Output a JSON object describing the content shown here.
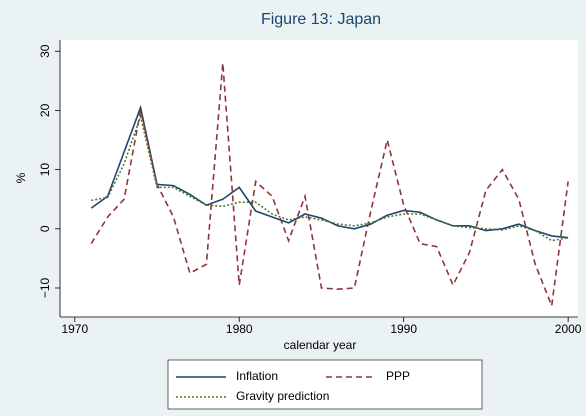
{
  "chart_data": {
    "type": "line",
    "title": "Figure 13: Japan",
    "xlabel": "calendar year",
    "ylabel": "%",
    "x": [
      1971,
      1972,
      1973,
      1974,
      1975,
      1976,
      1977,
      1978,
      1979,
      1980,
      1981,
      1982,
      1983,
      1984,
      1985,
      1986,
      1987,
      1988,
      1989,
      1990,
      1991,
      1992,
      1993,
      1994,
      1995,
      1996,
      1997,
      1998,
      1999,
      2000
    ],
    "series": [
      {
        "name": "Inflation",
        "color": "#1a476f",
        "dash": "solid",
        "values": [
          3.5,
          5.5,
          13,
          20.5,
          7.5,
          7.3,
          5.8,
          4,
          5,
          7,
          3,
          2,
          1,
          2.5,
          1.8,
          0.5,
          0,
          0.8,
          2.3,
          3.1,
          2.8,
          1.5,
          0.5,
          0.5,
          -0.3,
          0,
          0.8,
          -0.3,
          -1.2,
          -1.5
        ]
      },
      {
        "name": "PPP",
        "color": "#90353b",
        "dash": "dashed",
        "values": [
          -2.5,
          2,
          5,
          20,
          7.5,
          2,
          -7.5,
          -6,
          28,
          -9.5,
          8,
          5.5,
          -2,
          5.5,
          -10,
          -10.2,
          -10,
          3,
          15,
          4,
          -2.5,
          -3,
          -9.5,
          -4,
          6.5,
          10,
          5,
          -6,
          -13,
          8
        ]
      },
      {
        "name": "Gravity prediction",
        "color": "#55752f",
        "dash": "dotted",
        "values": [
          4.8,
          5.3,
          11,
          19,
          7,
          7,
          5.5,
          4,
          3.8,
          4.5,
          4.5,
          2.5,
          1.5,
          2,
          1.5,
          0.8,
          0.5,
          1,
          2,
          2.5,
          2.5,
          1.5,
          0.5,
          0.2,
          0,
          -0.2,
          0.5,
          -0.3,
          -2,
          -1.5
        ]
      }
    ],
    "xlim": [
      1969.1,
      2000.6
    ],
    "xticks": [
      1970,
      1980,
      1990,
      2000
    ],
    "ylim": [
      -14.9,
      31.9
    ],
    "yticks": [
      {
        "value": -10,
        "label": "−10"
      },
      0,
      10,
      20,
      30
    ],
    "legend_position": "bottom"
  }
}
